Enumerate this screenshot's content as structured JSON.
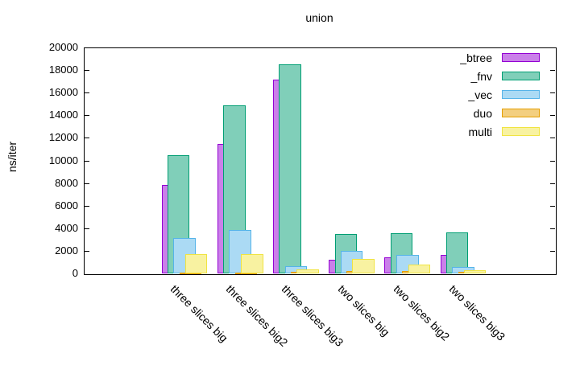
{
  "chart_data": {
    "type": "bar",
    "title": "union",
    "ylabel": "ns/iter",
    "xlabel": "",
    "ylim": [
      0,
      20000
    ],
    "yticks": [
      0,
      2000,
      4000,
      6000,
      8000,
      10000,
      12000,
      14000,
      16000,
      18000,
      20000
    ],
    "grid": false,
    "legend_position": "top-right-inside",
    "bar_style": "overlapping-cluster",
    "categories": [
      "three slices big",
      "three slices big2",
      "three slices big3",
      "two slices big",
      "two slices big2",
      "two slices big3"
    ],
    "series": [
      {
        "name": "_btree",
        "color": "#9400d3",
        "fill": "#ca80e9",
        "values": [
          7850,
          11480,
          17150,
          1240,
          1440,
          1650
        ]
      },
      {
        "name": "_fnv",
        "color": "#009e73",
        "fill": "#80cfb9",
        "values": [
          10490,
          14910,
          18520,
          3480,
          3560,
          3610
        ]
      },
      {
        "name": "_vec",
        "color": "#56b4e9",
        "fill": "#abdaf4",
        "values": [
          3100,
          3850,
          630,
          2000,
          1650,
          540
        ]
      },
      {
        "name": "duo",
        "color": "#e69f00",
        "fill": "#f3cf80",
        "values": [
          40,
          40,
          120,
          230,
          240,
          160
        ]
      },
      {
        "name": "multi",
        "color": "#f0e442",
        "fill": "#f8f2a1",
        "values": [
          1720,
          1680,
          340,
          1290,
          750,
          300
        ]
      }
    ]
  }
}
